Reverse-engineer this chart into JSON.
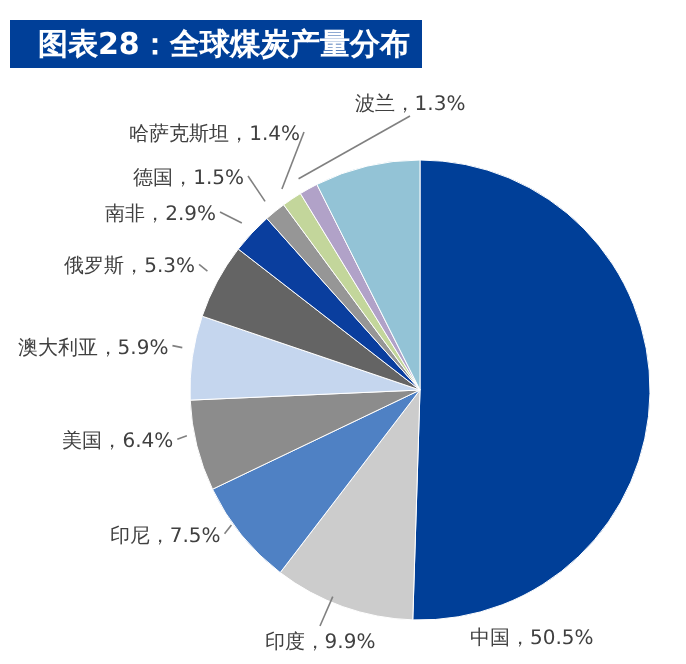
{
  "chart_data": {
    "type": "pie",
    "title": "图表28：全球煤炭产量分布",
    "categories": [
      "中国",
      "印度",
      "印尼",
      "美国",
      "澳大利亚",
      "俄罗斯",
      "南非",
      "德国",
      "哈萨克斯坦",
      "波兰",
      null
    ],
    "values": [
      50.5,
      9.9,
      7.5,
      6.4,
      5.9,
      5.3,
      2.9,
      1.5,
      1.4,
      1.3,
      7.4
    ],
    "value_labels": [
      "，50.5%",
      "，9.9%",
      "，7.5%",
      "，6.4%",
      "，5.9%",
      "，5.3%",
      "，2.9%",
      "，1.5%",
      "，1.4%",
      "，1.3%",
      null
    ],
    "colors": [
      "#003f98",
      "#cccccc",
      "#4f81c4",
      "#8c8c8c",
      "#c5d6ee",
      "#646464",
      "#0a3e9e",
      "#969696",
      "#c3d69b",
      "#b1a2c8",
      "#93c3d6"
    ]
  }
}
